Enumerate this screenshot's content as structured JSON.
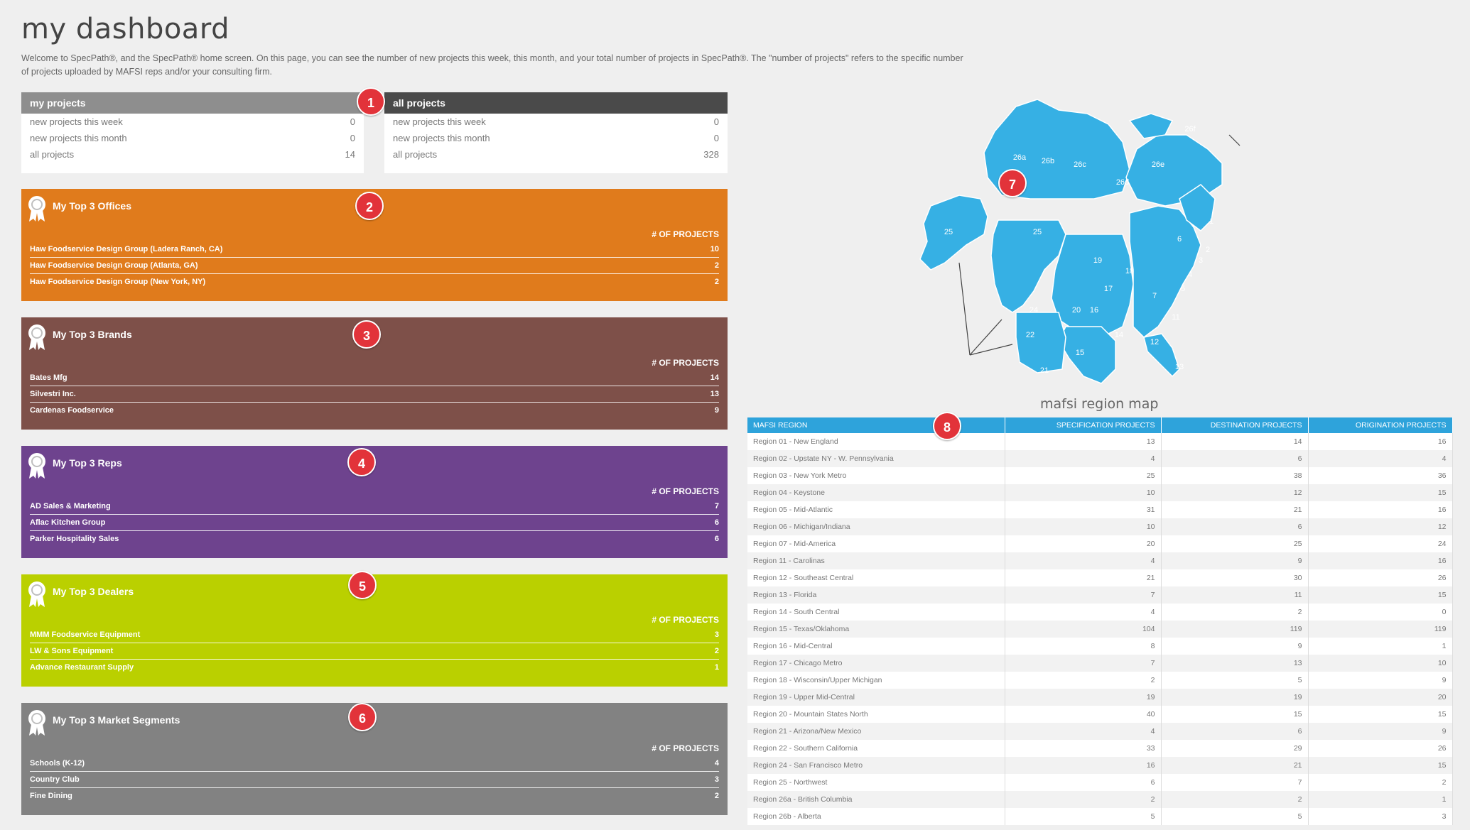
{
  "page": {
    "title": "my dashboard",
    "intro": "Welcome to SpecPath®, and the SpecPath® home screen. On this page, you can see the number of new projects this week, this month, and your total number of projects in SpecPath®. The \"number of projects\" refers to the specific number of projects uploaded by MAFSI reps and/or your consulting firm."
  },
  "my_projects": {
    "title": "my projects",
    "rows": [
      {
        "label": "new projects this week",
        "value": "0"
      },
      {
        "label": "new projects this month",
        "value": "0"
      },
      {
        "label": "all projects",
        "value": "14"
      }
    ]
  },
  "all_projects": {
    "title": "all projects",
    "rows": [
      {
        "label": "new projects this week",
        "value": "0"
      },
      {
        "label": "new projects this month",
        "value": "0"
      },
      {
        "label": "all projects",
        "value": "328"
      }
    ]
  },
  "cards": {
    "offices": {
      "title": "My Top 3 Offices",
      "column_header": "# OF PROJECTS",
      "color": "#e07b1c",
      "rows": [
        {
          "name": "Haw Foodservice Design Group (Ladera Ranch, CA)",
          "value": "10"
        },
        {
          "name": "Haw Foodservice Design Group (Atlanta, GA)",
          "value": "2"
        },
        {
          "name": "Haw Foodservice Design Group (New York, NY)",
          "value": "2"
        }
      ]
    },
    "brands": {
      "title": "My Top 3 Brands",
      "column_header": "# OF PROJECTS",
      "color": "#7e5049",
      "rows": [
        {
          "name": "Bates Mfg",
          "value": "14"
        },
        {
          "name": "Silvestri Inc.",
          "value": "13"
        },
        {
          "name": "Cardenas Foodservice",
          "value": "9"
        }
      ]
    },
    "reps": {
      "title": "My Top 3 Reps",
      "column_header": "# OF PROJECTS",
      "color": "#6e438e",
      "rows": [
        {
          "name": "AD Sales & Marketing",
          "value": "7"
        },
        {
          "name": "Aflac Kitchen Group",
          "value": "6"
        },
        {
          "name": "Parker Hospitality Sales",
          "value": "6"
        }
      ]
    },
    "dealers": {
      "title": "My Top 3 Dealers",
      "column_header": "# OF PROJECTS",
      "color": "#bad000",
      "rows": [
        {
          "name": "MMM Foodservice Equipment",
          "value": "3"
        },
        {
          "name": "LW & Sons Equipment",
          "value": "2"
        },
        {
          "name": "Advance Restaurant Supply",
          "value": "1"
        }
      ]
    },
    "segments": {
      "title": "My Top 3 Market Segments",
      "column_header": "# OF PROJECTS",
      "color": "#828282",
      "rows": [
        {
          "name": "Schools (K-12)",
          "value": "4"
        },
        {
          "name": "Country Club",
          "value": "3"
        },
        {
          "name": "Fine Dining",
          "value": "2"
        }
      ]
    }
  },
  "callouts": [
    "1",
    "2",
    "3",
    "4",
    "5",
    "6",
    "7",
    "8"
  ],
  "map": {
    "caption": "mafsi region map",
    "fill_color": "#36b0e4",
    "labels": [
      "26a",
      "26b",
      "26c",
      "26d",
      "26e",
      "26f",
      "25",
      "25",
      "19",
      "18",
      "17",
      "16",
      "24",
      "22",
      "21",
      "20",
      "15",
      "14",
      "12",
      "13",
      "11",
      "7",
      "6",
      "5",
      "4",
      "3",
      "2",
      "1"
    ]
  },
  "region_table": {
    "headers": [
      "MAFSI REGION",
      "SPECIFICATION PROJECTS",
      "DESTINATION PROJECTS",
      "ORIGINATION PROJECTS"
    ],
    "rows": [
      [
        "Region 01 - New England",
        "13",
        "14",
        "16"
      ],
      [
        "Region 02 - Upstate NY - W. Pennsylvania",
        "4",
        "6",
        "4"
      ],
      [
        "Region 03 - New York Metro",
        "25",
        "38",
        "36"
      ],
      [
        "Region 04 - Keystone",
        "10",
        "12",
        "15"
      ],
      [
        "Region 05 - Mid-Atlantic",
        "31",
        "21",
        "16"
      ],
      [
        "Region 06 - Michigan/Indiana",
        "10",
        "6",
        "12"
      ],
      [
        "Region 07 - Mid-America",
        "20",
        "25",
        "24"
      ],
      [
        "Region 11 - Carolinas",
        "4",
        "9",
        "16"
      ],
      [
        "Region 12 - Southeast Central",
        "21",
        "30",
        "26"
      ],
      [
        "Region 13 - Florida",
        "7",
        "11",
        "15"
      ],
      [
        "Region 14 - South Central",
        "4",
        "2",
        "0"
      ],
      [
        "Region 15 - Texas/Oklahoma",
        "104",
        "119",
        "119"
      ],
      [
        "Region 16 - Mid-Central",
        "8",
        "9",
        "1"
      ],
      [
        "Region 17 - Chicago Metro",
        "7",
        "13",
        "10"
      ],
      [
        "Region 18 - Wisconsin/Upper Michigan",
        "2",
        "5",
        "9"
      ],
      [
        "Region 19 - Upper Mid-Central",
        "19",
        "19",
        "20"
      ],
      [
        "Region 20 - Mountain States North",
        "40",
        "15",
        "15"
      ],
      [
        "Region 21 - Arizona/New Mexico",
        "4",
        "6",
        "9"
      ],
      [
        "Region 22 - Southern California",
        "33",
        "29",
        "26"
      ],
      [
        "Region 24 - San Francisco Metro",
        "16",
        "21",
        "15"
      ],
      [
        "Region 25 - Northwest",
        "6",
        "7",
        "2"
      ],
      [
        "Region 26a - British Columbia",
        "2",
        "2",
        "1"
      ],
      [
        "Region 26b - Alberta",
        "5",
        "5",
        "3"
      ]
    ]
  }
}
